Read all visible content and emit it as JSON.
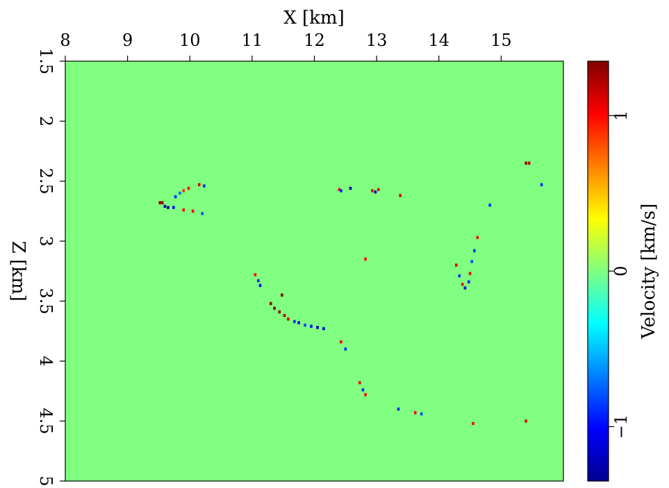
{
  "chart_data": {
    "type": "heatmap",
    "xlabel": "X [km]",
    "ylabel": "Z [km]",
    "xlim": [
      8,
      16
    ],
    "ylim": [
      1.5,
      5
    ],
    "x_ticks": [
      8,
      9,
      10,
      11,
      12,
      13,
      14,
      15
    ],
    "x_tick_labels": [
      "8",
      "9",
      "10",
      "11",
      "12",
      "13",
      "14",
      "15"
    ],
    "y_ticks": [
      1.5,
      2,
      2.5,
      3,
      3.5,
      4,
      4.5,
      5
    ],
    "y_tick_labels": [
      "1.5",
      "2",
      "2.5",
      "3",
      "3.5",
      "4",
      "4.5",
      "5"
    ],
    "x_axis_position": "top",
    "y_axis_direction": "down",
    "background_value": 0,
    "colorbar": {
      "label": "Velocity [km/s]",
      "range": [
        -1.35,
        1.35
      ],
      "ticks": [
        -1,
        0,
        1
      ],
      "tick_labels": [
        "−1",
        "0",
        "1"
      ],
      "colormap": "jet",
      "placement": "right"
    },
    "points": [
      {
        "x": 9.52,
        "z": 2.68,
        "v": 1.3
      },
      {
        "x": 9.56,
        "z": 2.68,
        "v": 1.25
      },
      {
        "x": 9.6,
        "z": 2.71,
        "v": -1.2
      },
      {
        "x": 9.65,
        "z": 2.72,
        "v": -1.3
      },
      {
        "x": 9.74,
        "z": 2.72,
        "v": -1.0
      },
      {
        "x": 9.77,
        "z": 2.63,
        "v": -0.9
      },
      {
        "x": 9.84,
        "z": 2.6,
        "v": -0.7
      },
      {
        "x": 9.9,
        "z": 2.58,
        "v": 0.9
      },
      {
        "x": 9.98,
        "z": 2.56,
        "v": 1.0
      },
      {
        "x": 10.15,
        "z": 2.53,
        "v": 1.1
      },
      {
        "x": 10.23,
        "z": 2.54,
        "v": -0.9
      },
      {
        "x": 9.9,
        "z": 2.74,
        "v": 1.0
      },
      {
        "x": 10.05,
        "z": 2.75,
        "v": 1.0
      },
      {
        "x": 10.2,
        "z": 2.77,
        "v": -0.8
      },
      {
        "x": 12.4,
        "z": 2.57,
        "v": 1.0
      },
      {
        "x": 12.43,
        "z": 2.58,
        "v": -0.9
      },
      {
        "x": 12.58,
        "z": 2.56,
        "v": -1.2
      },
      {
        "x": 12.93,
        "z": 2.58,
        "v": 1.0
      },
      {
        "x": 12.98,
        "z": 2.59,
        "v": -1.2
      },
      {
        "x": 13.03,
        "z": 2.57,
        "v": 1.0
      },
      {
        "x": 13.38,
        "z": 2.62,
        "v": 1.1
      },
      {
        "x": 15.4,
        "z": 2.35,
        "v": 1.3
      },
      {
        "x": 15.45,
        "z": 2.35,
        "v": 1.2
      },
      {
        "x": 15.65,
        "z": 2.53,
        "v": -0.9
      },
      {
        "x": 14.82,
        "z": 2.7,
        "v": -0.9
      },
      {
        "x": 14.62,
        "z": 2.97,
        "v": 1.0
      },
      {
        "x": 14.57,
        "z": 3.08,
        "v": -0.9
      },
      {
        "x": 14.53,
        "z": 3.17,
        "v": -0.8
      },
      {
        "x": 14.5,
        "z": 3.27,
        "v": 1.0
      },
      {
        "x": 14.48,
        "z": 3.34,
        "v": -0.9
      },
      {
        "x": 14.42,
        "z": 3.39,
        "v": -1.1
      },
      {
        "x": 14.38,
        "z": 3.36,
        "v": 1.0
      },
      {
        "x": 14.33,
        "z": 3.29,
        "v": -0.9
      },
      {
        "x": 14.28,
        "z": 3.2,
        "v": 1.1
      },
      {
        "x": 12.82,
        "z": 3.15,
        "v": 1.0
      },
      {
        "x": 11.05,
        "z": 3.28,
        "v": 1.0
      },
      {
        "x": 11.1,
        "z": 3.33,
        "v": -0.9
      },
      {
        "x": 11.13,
        "z": 3.37,
        "v": -1.0
      },
      {
        "x": 11.48,
        "z": 3.45,
        "v": 1.35
      },
      {
        "x": 11.3,
        "z": 3.52,
        "v": 1.3
      },
      {
        "x": 11.36,
        "z": 3.56,
        "v": 1.35
      },
      {
        "x": 11.44,
        "z": 3.59,
        "v": 1.3
      },
      {
        "x": 11.52,
        "z": 3.62,
        "v": 1.25
      },
      {
        "x": 11.58,
        "z": 3.65,
        "v": 1.1
      },
      {
        "x": 11.68,
        "z": 3.67,
        "v": -0.9
      },
      {
        "x": 11.75,
        "z": 3.68,
        "v": -1.0
      },
      {
        "x": 11.85,
        "z": 3.7,
        "v": -0.8
      },
      {
        "x": 11.95,
        "z": 3.71,
        "v": -1.0
      },
      {
        "x": 12.05,
        "z": 3.72,
        "v": -1.2
      },
      {
        "x": 12.15,
        "z": 3.73,
        "v": -1.1
      },
      {
        "x": 12.43,
        "z": 3.84,
        "v": 1.0
      },
      {
        "x": 12.5,
        "z": 3.9,
        "v": -0.9
      },
      {
        "x": 12.73,
        "z": 4.18,
        "v": 1.0
      },
      {
        "x": 12.78,
        "z": 4.24,
        "v": -0.9
      },
      {
        "x": 12.82,
        "z": 4.28,
        "v": 1.0
      },
      {
        "x": 13.35,
        "z": 4.4,
        "v": -0.9
      },
      {
        "x": 13.62,
        "z": 4.43,
        "v": 1.0
      },
      {
        "x": 13.72,
        "z": 4.44,
        "v": -0.8
      },
      {
        "x": 14.55,
        "z": 4.52,
        "v": 1.0
      },
      {
        "x": 15.4,
        "z": 4.5,
        "v": 1.1
      }
    ]
  }
}
